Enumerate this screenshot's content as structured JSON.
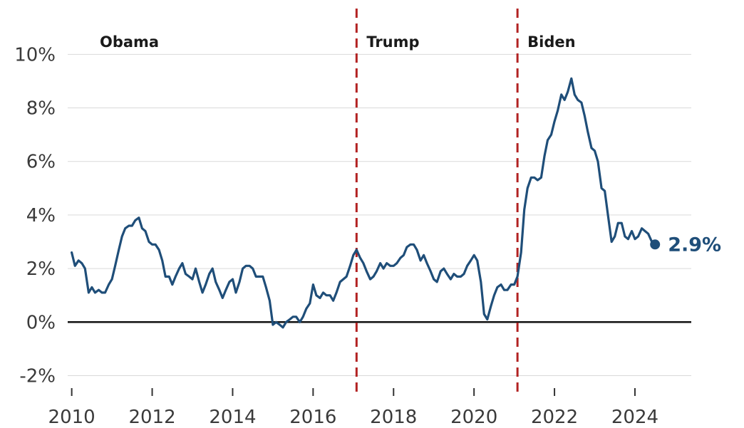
{
  "chart_data": {
    "type": "line",
    "title": "",
    "xlabel": "",
    "ylabel": "",
    "xlim": [
      2009.9,
      2025.4
    ],
    "ylim": [
      -2.6,
      11.5
    ],
    "grid": true,
    "legend": "none",
    "y_ticks": [
      {
        "value": -2,
        "label": "-2%"
      },
      {
        "value": 0,
        "label": "0%"
      },
      {
        "value": 2,
        "label": "2%"
      },
      {
        "value": 4,
        "label": "4%"
      },
      {
        "value": 6,
        "label": "6%"
      },
      {
        "value": 8,
        "label": "8%"
      },
      {
        "value": 10,
        "label": "10%"
      }
    ],
    "x_ticks": [
      {
        "value": 2010,
        "label": "2010"
      },
      {
        "value": 2012,
        "label": "2012"
      },
      {
        "value": 2014,
        "label": "2014"
      },
      {
        "value": 2016,
        "label": "2016"
      },
      {
        "value": 2018,
        "label": "2018"
      },
      {
        "value": 2020,
        "label": "2020"
      },
      {
        "value": 2022,
        "label": "2022"
      },
      {
        "value": 2024,
        "label": "2024"
      }
    ],
    "eras": [
      {
        "label": "Obama",
        "start": 2010.0
      },
      {
        "label": "Trump",
        "start": 2017.08
      },
      {
        "label": "Biden",
        "start": 2021.08
      }
    ],
    "dividers": [
      2017.08,
      2021.08
    ],
    "end_label": "2.9%",
    "colors": {
      "line": "#1f4e79",
      "divider": "#b22222",
      "grid": "#d9d9d9",
      "zero": "#111111"
    },
    "series": [
      {
        "x": [
          2010.0,
          2010.08,
          2010.17,
          2010.25,
          2010.33,
          2010.42,
          2010.5,
          2010.58,
          2010.67,
          2010.75,
          2010.83,
          2010.92,
          2011.0,
          2011.08,
          2011.17,
          2011.25,
          2011.33,
          2011.42,
          2011.5,
          2011.58,
          2011.67,
          2011.75,
          2011.83,
          2011.92,
          2012.0,
          2012.08,
          2012.17,
          2012.25,
          2012.33,
          2012.42,
          2012.5,
          2012.58,
          2012.67,
          2012.75,
          2012.83,
          2012.92,
          2013.0,
          2013.08,
          2013.17,
          2013.25,
          2013.33,
          2013.42,
          2013.5,
          2013.58,
          2013.67,
          2013.75,
          2013.83,
          2013.92,
          2014.0,
          2014.08,
          2014.17,
          2014.25,
          2014.33,
          2014.42,
          2014.5,
          2014.58,
          2014.67,
          2014.75,
          2014.83,
          2014.92,
          2015.0,
          2015.08,
          2015.17,
          2015.25,
          2015.33,
          2015.42,
          2015.5,
          2015.58,
          2015.67,
          2015.75,
          2015.83,
          2015.92,
          2016.0,
          2016.08,
          2016.17,
          2016.25,
          2016.33,
          2016.42,
          2016.5,
          2016.58,
          2016.67,
          2016.75,
          2016.83,
          2016.92,
          2017.0,
          2017.08,
          2017.17,
          2017.25,
          2017.33,
          2017.42,
          2017.5,
          2017.58,
          2017.67,
          2017.75,
          2017.83,
          2017.92,
          2018.0,
          2018.08,
          2018.17,
          2018.25,
          2018.33,
          2018.42,
          2018.5,
          2018.58,
          2018.67,
          2018.75,
          2018.83,
          2018.92,
          2019.0,
          2019.08,
          2019.17,
          2019.25,
          2019.33,
          2019.42,
          2019.5,
          2019.58,
          2019.67,
          2019.75,
          2019.83,
          2019.92,
          2020.0,
          2020.08,
          2020.17,
          2020.25,
          2020.33,
          2020.42,
          2020.5,
          2020.58,
          2020.67,
          2020.75,
          2020.83,
          2020.92,
          2021.0,
          2021.08,
          2021.17,
          2021.25,
          2021.33,
          2021.42,
          2021.5,
          2021.58,
          2021.67,
          2021.75,
          2021.83,
          2021.92,
          2022.0,
          2022.08,
          2022.17,
          2022.25,
          2022.33,
          2022.42,
          2022.5,
          2022.58,
          2022.67,
          2022.75,
          2022.83,
          2022.92,
          2023.0,
          2023.08,
          2023.17,
          2023.25,
          2023.33,
          2023.42,
          2023.5,
          2023.58,
          2023.67,
          2023.75,
          2023.83,
          2023.92,
          2024.0,
          2024.08,
          2024.17,
          2024.25,
          2024.33,
          2024.42,
          2024.5
        ],
        "y": [
          2.6,
          2.1,
          2.3,
          2.2,
          2.0,
          1.1,
          1.3,
          1.1,
          1.2,
          1.1,
          1.1,
          1.4,
          1.6,
          2.1,
          2.7,
          3.2,
          3.5,
          3.6,
          3.6,
          3.8,
          3.9,
          3.5,
          3.4,
          3.0,
          2.9,
          2.9,
          2.7,
          2.3,
          1.7,
          1.7,
          1.4,
          1.7,
          2.0,
          2.2,
          1.8,
          1.7,
          1.6,
          2.0,
          1.5,
          1.1,
          1.4,
          1.8,
          2.0,
          1.5,
          1.2,
          0.9,
          1.2,
          1.5,
          1.6,
          1.1,
          1.5,
          2.0,
          2.1,
          2.1,
          2.0,
          1.7,
          1.7,
          1.7,
          1.3,
          0.8,
          -0.1,
          0.0,
          -0.1,
          -0.2,
          0.0,
          0.1,
          0.2,
          0.2,
          0.0,
          0.2,
          0.5,
          0.7,
          1.4,
          1.0,
          0.9,
          1.1,
          1.0,
          1.0,
          0.8,
          1.1,
          1.5,
          1.6,
          1.7,
          2.1,
          2.5,
          2.7,
          2.4,
          2.2,
          1.9,
          1.6,
          1.7,
          1.9,
          2.2,
          2.0,
          2.2,
          2.1,
          2.1,
          2.2,
          2.4,
          2.5,
          2.8,
          2.9,
          2.9,
          2.7,
          2.3,
          2.5,
          2.2,
          1.9,
          1.6,
          1.5,
          1.9,
          2.0,
          1.8,
          1.6,
          1.8,
          1.7,
          1.7,
          1.8,
          2.1,
          2.3,
          2.5,
          2.3,
          1.5,
          0.3,
          0.1,
          0.6,
          1.0,
          1.3,
          1.4,
          1.2,
          1.2,
          1.4,
          1.4,
          1.7,
          2.6,
          4.2,
          5.0,
          5.4,
          5.4,
          5.3,
          5.4,
          6.2,
          6.8,
          7.0,
          7.5,
          7.9,
          8.5,
          8.3,
          8.6,
          9.1,
          8.5,
          8.3,
          8.2,
          7.7,
          7.1,
          6.5,
          6.4,
          6.0,
          5.0,
          4.9,
          4.0,
          3.0,
          3.2,
          3.7,
          3.7,
          3.2,
          3.1,
          3.4,
          3.1,
          3.2,
          3.5,
          3.4,
          3.3,
          3.0,
          2.9
        ]
      }
    ]
  }
}
